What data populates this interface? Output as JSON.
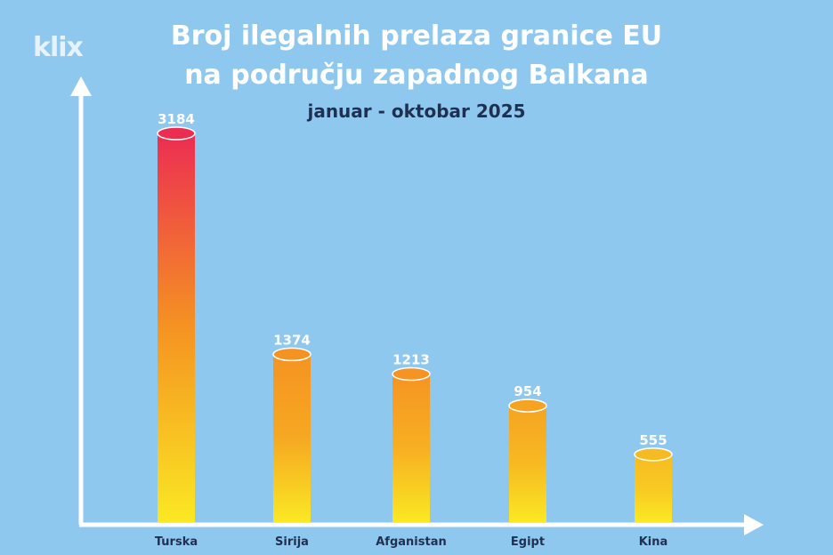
{
  "logo": "klix",
  "chart_data": {
    "type": "bar",
    "title_line1": "Broj ilegalnih prelaza granice EU",
    "title_line2": "na području zapadnog Balkana",
    "subtitle": "januar - oktobar 2025",
    "categories": [
      "Turska",
      "Sirija",
      "Afganistan",
      "Egipt",
      "Kina"
    ],
    "values": [
      3184,
      1374,
      1213,
      954,
      555
    ],
    "xlabel": "",
    "ylabel": "",
    "ylim": [
      0,
      3184
    ],
    "grid": false,
    "legend": "none",
    "colors": {
      "background": "#8fc8ee",
      "bar_top_max": "#ec2d52",
      "bar_mid": "#f59322",
      "bar_bottom": "#fae823",
      "axis": "#ffffff",
      "value_label": "#ffffff",
      "category_label": "#1f3050"
    }
  }
}
